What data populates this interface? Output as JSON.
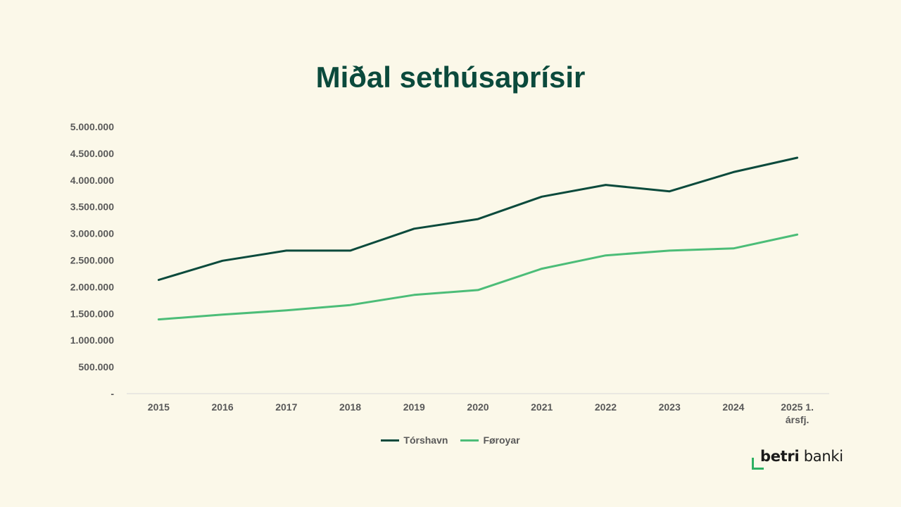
{
  "chart_data": {
    "type": "line",
    "title": "Miðal sethúsaprísir",
    "categories": [
      "2015",
      "2016",
      "2017",
      "2018",
      "2019",
      "2020",
      "2021",
      "2022",
      "2023",
      "2024",
      "2025 1. ársfj."
    ],
    "category_lines": [
      [
        "2015"
      ],
      [
        "2016"
      ],
      [
        "2017"
      ],
      [
        "2018"
      ],
      [
        "2019"
      ],
      [
        "2020"
      ],
      [
        "2021"
      ],
      [
        "2022"
      ],
      [
        "2023"
      ],
      [
        "2024"
      ],
      [
        "2025 1.",
        "ársfj."
      ]
    ],
    "yticks": [
      "-",
      "500.000",
      "1.000.000",
      "1.500.000",
      "2.000.000",
      "2.500.000",
      "3.000.000",
      "3.500.000",
      "4.000.000",
      "4.500.000",
      "5.000.000"
    ],
    "ylim": [
      0,
      5000000
    ],
    "series": [
      {
        "name": "Tórshavn",
        "color": "#0b4a3c",
        "values": [
          2130000,
          2490000,
          2680000,
          2680000,
          3090000,
          3270000,
          3690000,
          3910000,
          3790000,
          4150000,
          4420000
        ]
      },
      {
        "name": "Føroyar",
        "color": "#4cbd78",
        "values": [
          1390000,
          1480000,
          1560000,
          1660000,
          1850000,
          1940000,
          2340000,
          2590000,
          2680000,
          2720000,
          2980000
        ]
      }
    ],
    "legend_position": "bottom"
  },
  "logo": {
    "bold": "betri",
    "rest": "banki"
  }
}
